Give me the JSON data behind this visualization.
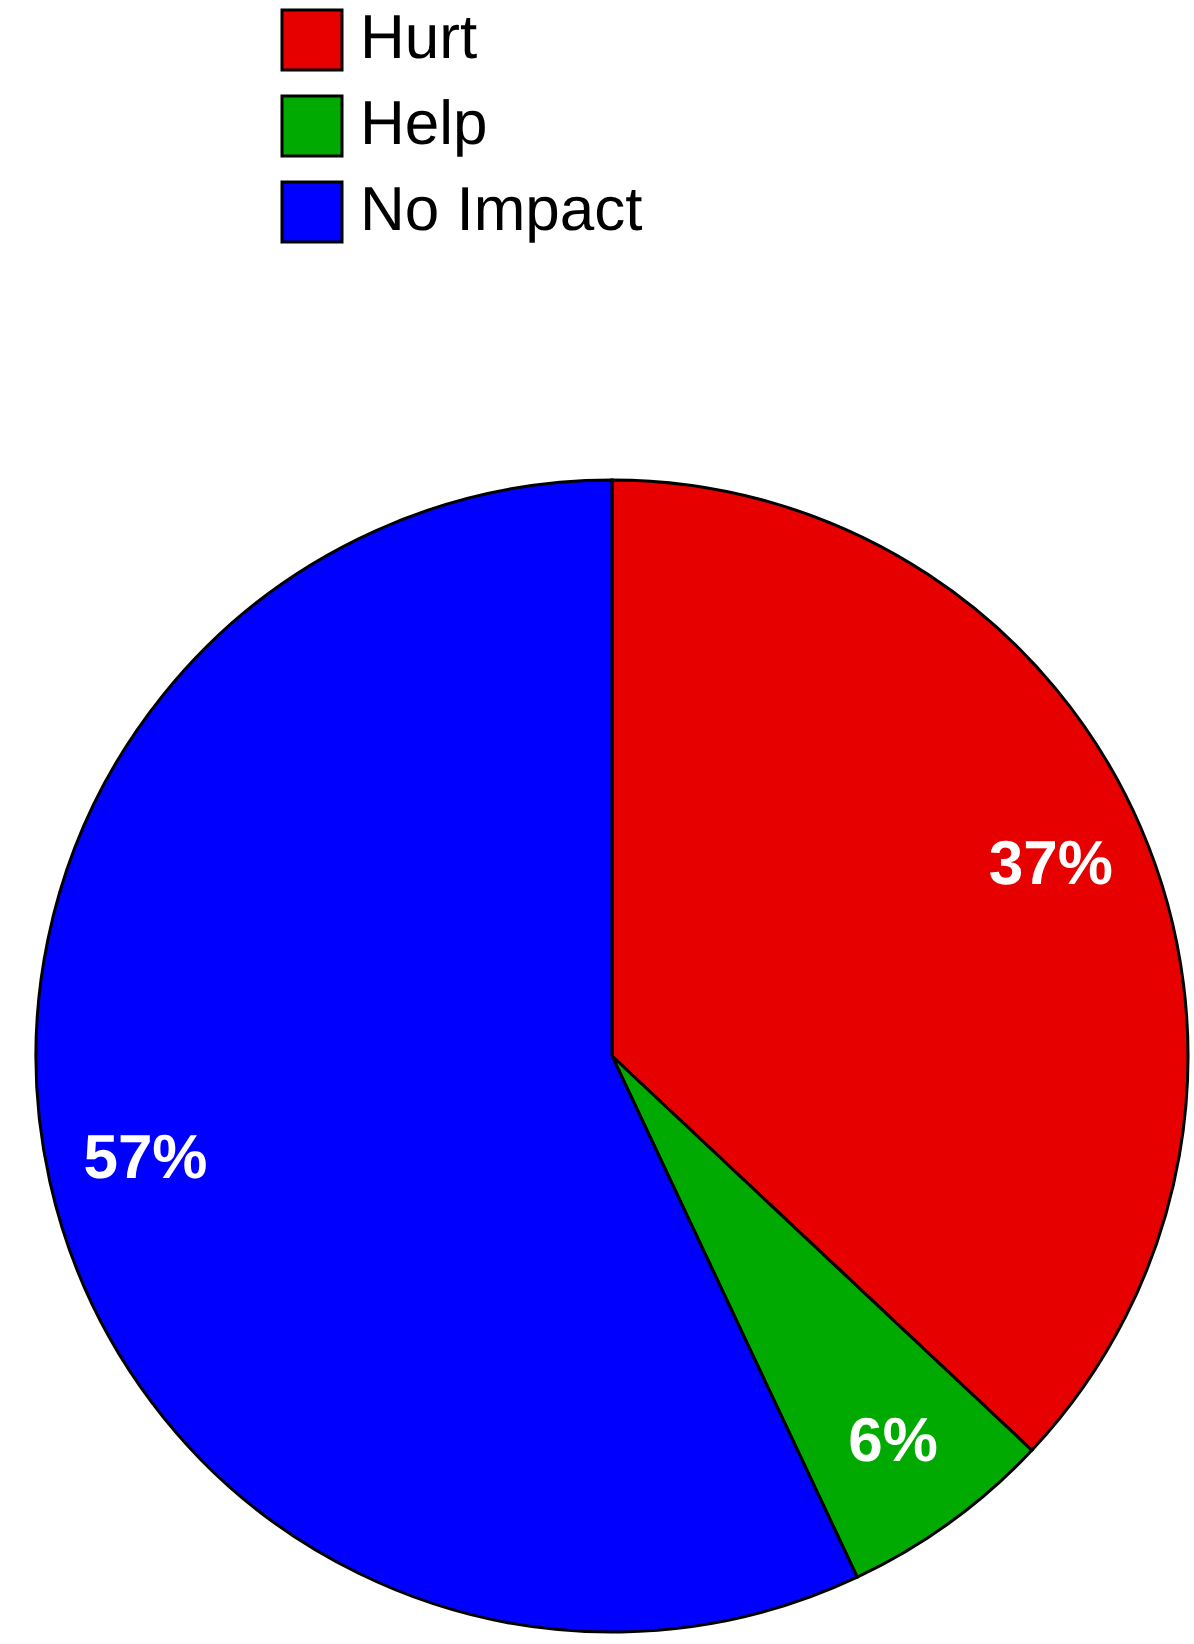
{
  "chart_data": {
    "type": "pie",
    "categories": [
      "Hurt",
      "Help",
      "No Impact"
    ],
    "values": [
      37,
      6,
      57
    ],
    "colors": [
      "#e60000",
      "#00aa00",
      "#0000ff"
    ],
    "value_labels": [
      "37%",
      "6%",
      "57%"
    ],
    "legend": "top"
  }
}
